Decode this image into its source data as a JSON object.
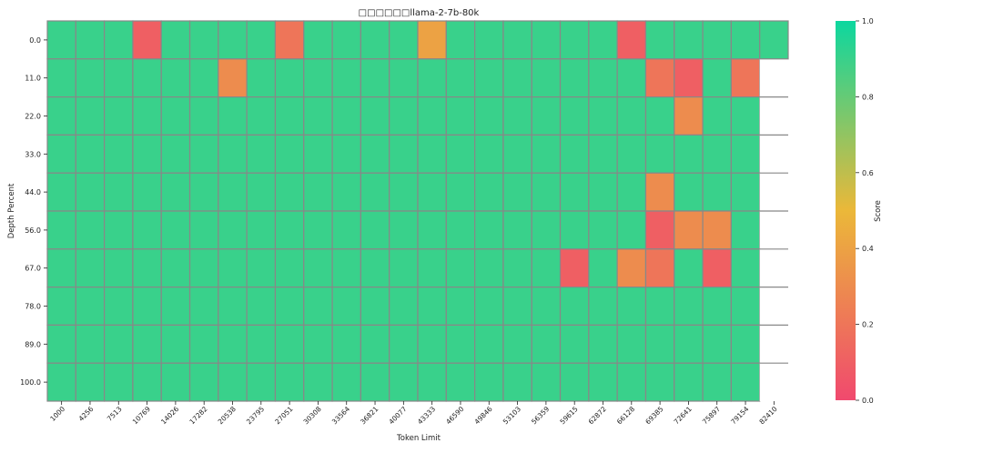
{
  "chart_data": {
    "type": "heatmap",
    "title": "□□□□□□llama-2-7b-80k",
    "xlabel": "Token Limit",
    "ylabel": "Depth Percent",
    "colorbar_label": "Score",
    "colorbar_ticks": [
      "0.0",
      "0.2",
      "0.4",
      "0.6",
      "0.8",
      "1.0"
    ],
    "colorbar_range": [
      0.0,
      1.0
    ],
    "colormap": [
      "#F0496E",
      "#EBB839",
      "#0CD79F"
    ],
    "grid_color": "#888888",
    "x": [
      "1000",
      "4256",
      "7513",
      "10769",
      "14026",
      "17282",
      "20538",
      "23795",
      "27051",
      "30308",
      "33564",
      "36821",
      "40077",
      "43333",
      "46590",
      "49846",
      "53103",
      "56359",
      "59615",
      "62872",
      "66128",
      "69385",
      "72641",
      "75897",
      "79154",
      "82410"
    ],
    "y": [
      "0.0",
      "11.0",
      "22.0",
      "33.0",
      "44.0",
      "56.0",
      "67.0",
      "78.0",
      "89.0",
      "100.0"
    ],
    "values": [
      [
        0.9,
        0.9,
        0.9,
        0.1,
        0.9,
        0.9,
        0.9,
        0.9,
        0.2,
        0.9,
        0.9,
        0.9,
        0.9,
        0.4,
        0.9,
        0.9,
        0.9,
        0.9,
        0.9,
        0.9,
        0.1,
        0.9,
        0.9,
        0.9,
        0.9,
        0.9
      ],
      [
        0.9,
        0.9,
        0.9,
        0.9,
        0.9,
        0.9,
        0.3,
        0.9,
        0.9,
        0.9,
        0.9,
        0.9,
        0.9,
        0.9,
        0.9,
        0.9,
        0.9,
        0.9,
        0.9,
        0.9,
        0.9,
        0.2,
        0.1,
        0.9,
        0.2,
        null
      ],
      [
        0.9,
        0.9,
        0.9,
        0.9,
        0.9,
        0.9,
        0.9,
        0.9,
        0.9,
        0.9,
        0.9,
        0.9,
        0.9,
        0.9,
        0.9,
        0.9,
        0.9,
        0.9,
        0.9,
        0.9,
        0.9,
        0.9,
        0.3,
        0.9,
        0.9,
        null
      ],
      [
        0.9,
        0.9,
        0.9,
        0.9,
        0.9,
        0.9,
        0.9,
        0.9,
        0.9,
        0.9,
        0.9,
        0.9,
        0.9,
        0.9,
        0.9,
        0.9,
        0.9,
        0.9,
        0.9,
        0.9,
        0.9,
        0.9,
        0.9,
        0.9,
        0.9,
        null
      ],
      [
        0.9,
        0.9,
        0.9,
        0.9,
        0.9,
        0.9,
        0.9,
        0.9,
        0.9,
        0.9,
        0.9,
        0.9,
        0.9,
        0.9,
        0.9,
        0.9,
        0.9,
        0.9,
        0.9,
        0.9,
        0.9,
        0.3,
        0.9,
        0.9,
        0.9,
        null
      ],
      [
        0.9,
        0.9,
        0.9,
        0.9,
        0.9,
        0.9,
        0.9,
        0.9,
        0.9,
        0.9,
        0.9,
        0.9,
        0.9,
        0.9,
        0.9,
        0.9,
        0.9,
        0.9,
        0.9,
        0.9,
        0.9,
        0.1,
        0.3,
        0.3,
        0.9,
        null
      ],
      [
        0.9,
        0.9,
        0.9,
        0.9,
        0.9,
        0.9,
        0.9,
        0.9,
        0.9,
        0.9,
        0.9,
        0.9,
        0.9,
        0.9,
        0.9,
        0.9,
        0.9,
        0.9,
        0.1,
        0.9,
        0.3,
        0.2,
        0.9,
        0.1,
        0.9,
        null
      ],
      [
        0.9,
        0.9,
        0.9,
        0.9,
        0.9,
        0.9,
        0.9,
        0.9,
        0.9,
        0.9,
        0.9,
        0.9,
        0.9,
        0.9,
        0.9,
        0.9,
        0.9,
        0.9,
        0.9,
        0.9,
        0.9,
        0.9,
        0.9,
        0.9,
        0.9,
        null
      ],
      [
        0.9,
        0.9,
        0.9,
        0.9,
        0.9,
        0.9,
        0.9,
        0.9,
        0.9,
        0.9,
        0.9,
        0.9,
        0.9,
        0.9,
        0.9,
        0.9,
        0.9,
        0.9,
        0.9,
        0.9,
        0.9,
        0.9,
        0.9,
        0.9,
        0.9,
        null
      ],
      [
        0.9,
        0.9,
        0.9,
        0.9,
        0.9,
        0.9,
        0.9,
        0.9,
        0.9,
        0.9,
        0.9,
        0.9,
        0.9,
        0.9,
        0.9,
        0.9,
        0.9,
        0.9,
        0.9,
        0.9,
        0.9,
        0.9,
        0.9,
        0.9,
        0.9,
        null
      ]
    ]
  }
}
